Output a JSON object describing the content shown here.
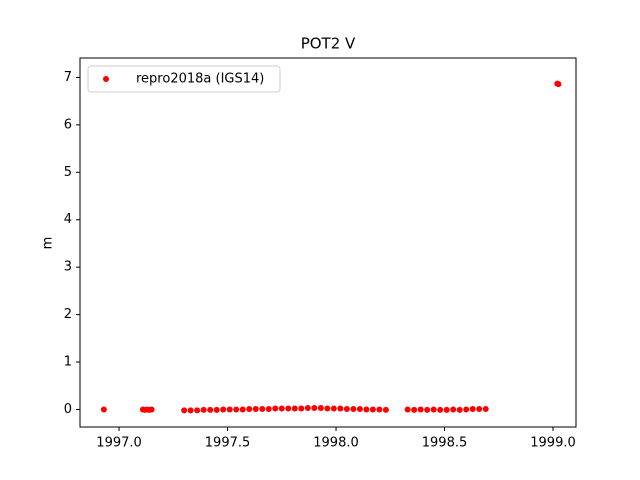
{
  "chart_data": {
    "type": "scatter",
    "title": "POT2 V",
    "ylabel": "m",
    "series": [
      {
        "name": "repro2018a (IGS14)",
        "color": "#ff0000",
        "x": [
          1996.93,
          1997.11,
          1997.12,
          1997.13,
          1997.14,
          1997.15,
          1997.3,
          1997.33,
          1997.36,
          1997.39,
          1997.42,
          1997.45,
          1997.48,
          1997.51,
          1997.54,
          1997.57,
          1997.6,
          1997.63,
          1997.66,
          1997.69,
          1997.72,
          1997.75,
          1997.78,
          1997.81,
          1997.84,
          1997.87,
          1997.9,
          1997.93,
          1997.96,
          1997.99,
          1998.02,
          1998.05,
          1998.08,
          1998.11,
          1998.14,
          1998.17,
          1998.2,
          1998.23,
          1998.33,
          1998.36,
          1998.39,
          1998.42,
          1998.45,
          1998.48,
          1998.51,
          1998.54,
          1998.57,
          1998.6,
          1998.63,
          1998.66,
          1998.69,
          1999.02,
          1999.025
        ],
        "values": [
          0.0,
          0.0,
          -0.01,
          0.0,
          -0.01,
          0.0,
          -0.02,
          -0.02,
          -0.02,
          -0.01,
          -0.01,
          -0.01,
          0.0,
          0.0,
          0.0,
          0.0,
          0.01,
          0.01,
          0.01,
          0.01,
          0.02,
          0.02,
          0.02,
          0.02,
          0.02,
          0.03,
          0.03,
          0.03,
          0.02,
          0.02,
          0.02,
          0.01,
          0.01,
          0.01,
          0.0,
          0.0,
          0.0,
          -0.01,
          0.0,
          -0.01,
          0.0,
          -0.01,
          0.0,
          -0.01,
          -0.01,
          0.0,
          -0.01,
          0.0,
          0.01,
          0.01,
          0.01,
          6.87,
          6.86
        ]
      }
    ],
    "xlim": [
      1996.82,
      1999.106
    ],
    "ylim": [
      -0.37,
      7.41
    ],
    "xticks": [
      {
        "value": 1997.0,
        "label": "1997.0"
      },
      {
        "value": 1997.5,
        "label": "1997.5"
      },
      {
        "value": 1998.0,
        "label": "1998.0"
      },
      {
        "value": 1998.5,
        "label": "1998.5"
      },
      {
        "value": 1999.0,
        "label": "1999.0"
      }
    ],
    "yticks": [
      0,
      1,
      2,
      3,
      4,
      5,
      6,
      7
    ],
    "legend": "upper left"
  }
}
